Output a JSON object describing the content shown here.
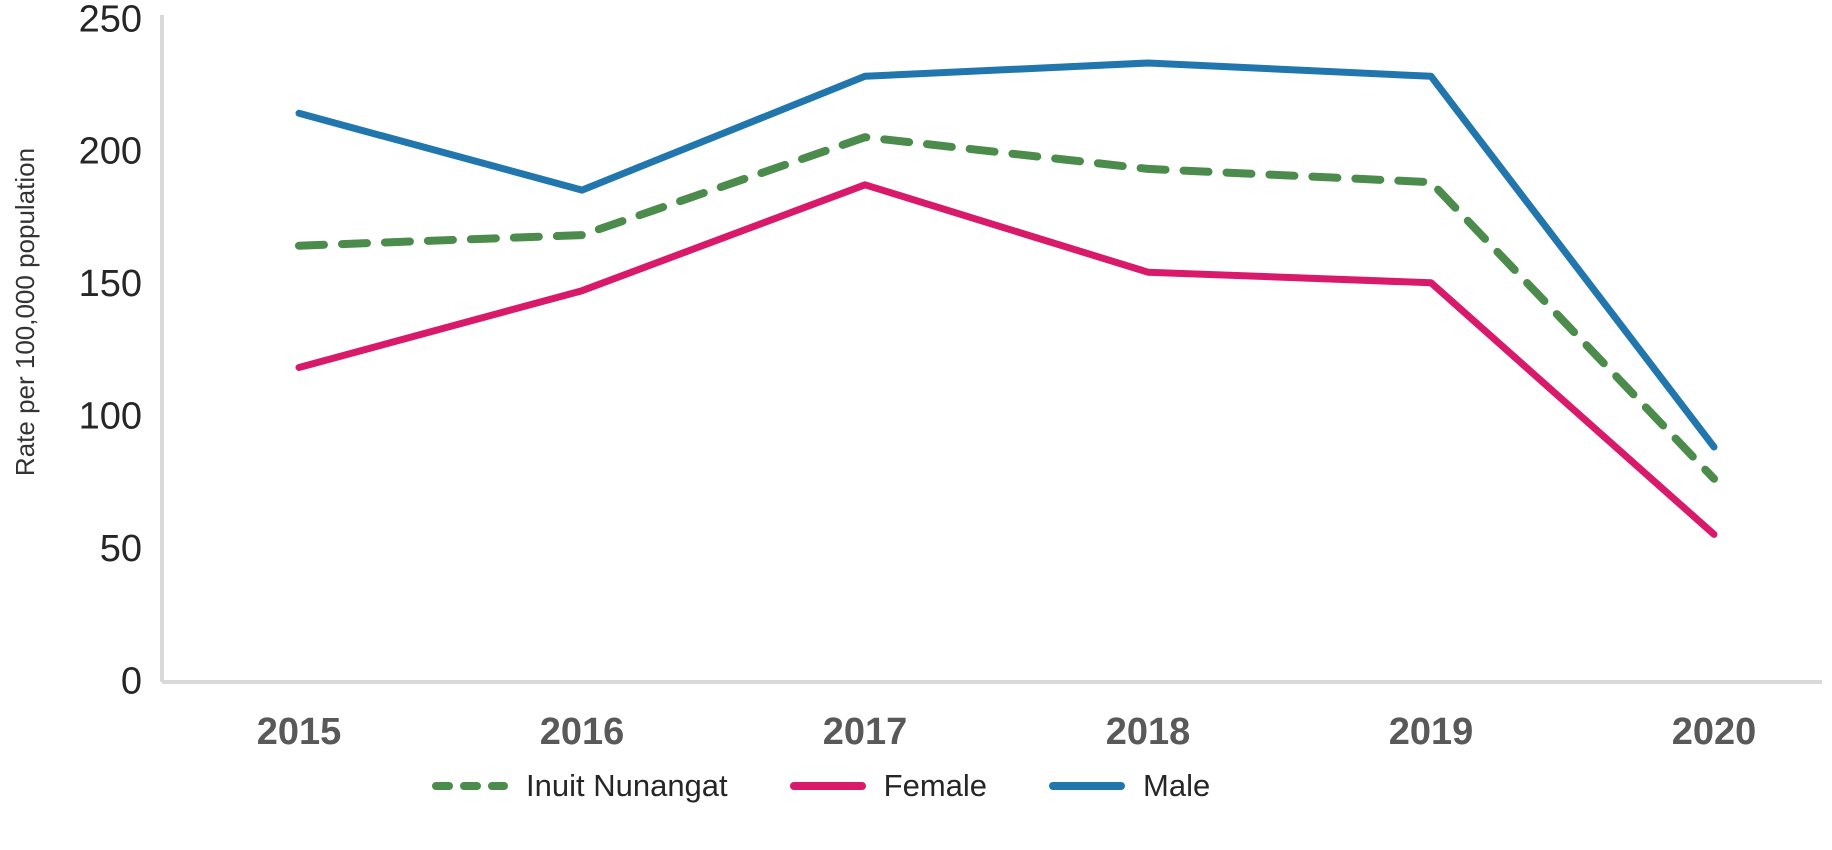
{
  "chart_data": {
    "type": "line",
    "title": "",
    "xlabel": "",
    "ylabel": "Rate per 100,000 population",
    "x": [
      "2015",
      "2016",
      "2017",
      "2018",
      "2019",
      "2020"
    ],
    "yticks": [
      "0",
      "50",
      "100",
      "150",
      "200",
      "250"
    ],
    "ylim": [
      0,
      250
    ],
    "grid": false,
    "legend_position": "bottom",
    "series": [
      {
        "name": "Inuit Nunangat",
        "color": "#4b8b4b",
        "style": "dashed",
        "values": [
          164,
          168,
          205,
          193,
          188,
          76
        ]
      },
      {
        "name": "Female",
        "color": "#d91a6b",
        "style": "solid",
        "values": [
          118,
          147,
          187,
          154,
          150,
          55
        ]
      },
      {
        "name": "Male",
        "color": "#2176ae",
        "style": "solid",
        "values": [
          214,
          185,
          228,
          233,
          228,
          88
        ]
      }
    ],
    "styles": {
      "axis_line_color": "#d9d9d9",
      "y_tick_color": "#262626",
      "x_tick_color": "#595959",
      "axis_title_color": "#333333",
      "legend_text_color": "#262626"
    }
  }
}
